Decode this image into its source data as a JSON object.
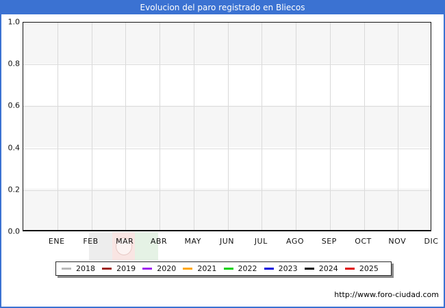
{
  "title": "Evolucion del paro registrado en Bliecos",
  "source_url": "http://www.foro-ciudad.com",
  "colors": {
    "frame_accent": "#3b72d2",
    "title_text": "#ffffff",
    "band_shade": "#f6f6f6",
    "gridline": "#d9d9d9",
    "plot_border": "#111111"
  },
  "watermark": {
    "name": "faded-flag-watermark",
    "band_colors": [
      "rgba(130,130,130,0.14)",
      "rgba(210,70,60,0.14)",
      "rgba(70,160,70,0.14)"
    ]
  },
  "chart_data": {
    "type": "line",
    "title": "Evolucion del paro registrado en Bliecos",
    "xlabel": "",
    "ylabel": "",
    "categories": [
      "ENE",
      "FEB",
      "MAR",
      "ABR",
      "MAY",
      "JUN",
      "JUL",
      "AGO",
      "SEP",
      "OCT",
      "NOV",
      "DIC"
    ],
    "yticks": [
      "1.0",
      "0.8",
      "0.6",
      "0.4",
      "0.2",
      "0.0"
    ],
    "ylim": [
      0.0,
      1.0
    ],
    "grid": true,
    "legend_position": "bottom",
    "series": [
      {
        "name": "2018",
        "color": "#b8b8b8",
        "values": []
      },
      {
        "name": "2019",
        "color": "#9e241b",
        "values": []
      },
      {
        "name": "2020",
        "color": "#a020f0",
        "values": []
      },
      {
        "name": "2021",
        "color": "#ffa500",
        "values": []
      },
      {
        "name": "2022",
        "color": "#00d200",
        "values": []
      },
      {
        "name": "2023",
        "color": "#0000dd",
        "values": []
      },
      {
        "name": "2024",
        "color": "#000000",
        "values": []
      },
      {
        "name": "2025",
        "color": "#e00000",
        "values": []
      }
    ]
  }
}
